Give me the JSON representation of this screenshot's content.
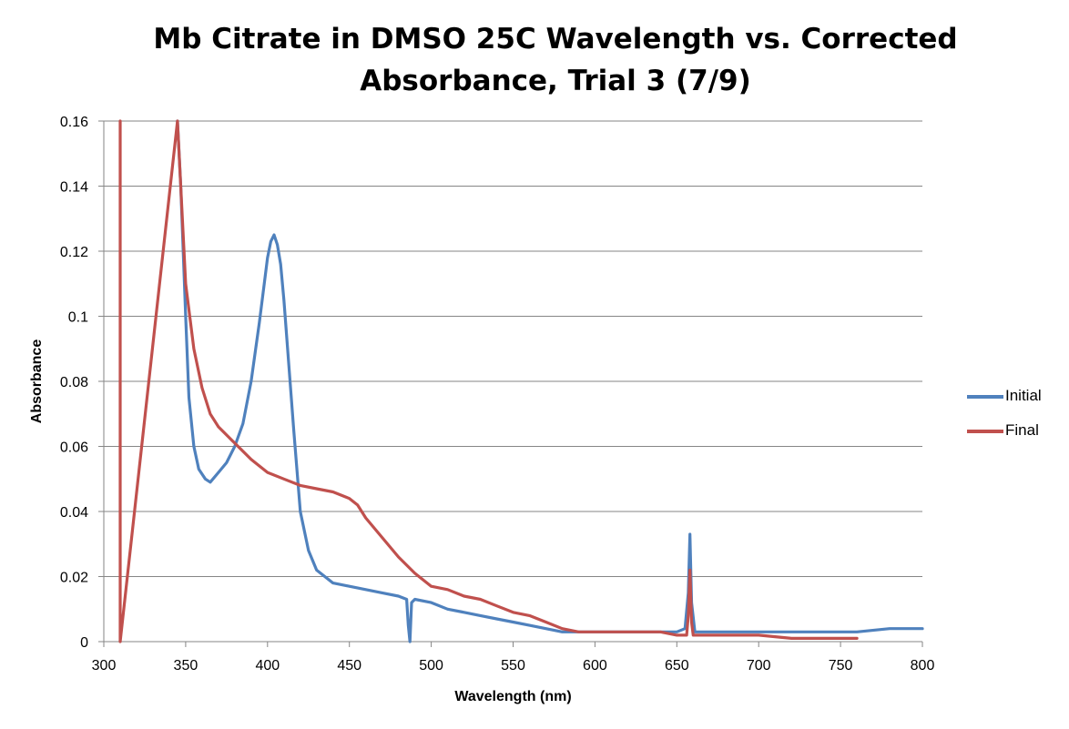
{
  "chart_data": {
    "type": "line",
    "title": "Mb Citrate in DMSO 25C Wavelength vs. Corrected Absorbance, Trial 3 (7/9)",
    "title_lines": [
      "Mb Citrate in DMSO 25C Wavelength vs. Corrected",
      "Absorbance, Trial 3 (7/9)"
    ],
    "xlabel": "Wavelength (nm)",
    "ylabel": "Absorbance",
    "xlim": [
      300,
      800
    ],
    "ylim": [
      0,
      0.16
    ],
    "x_ticks": [
      "300",
      "350",
      "400",
      "450",
      "500",
      "550",
      "600",
      "650",
      "700",
      "750",
      "800"
    ],
    "y_ticks": [
      "0",
      "0.02",
      "0.04",
      "0.06",
      "0.08",
      "0.1",
      "0.12",
      "0.14",
      "0.16"
    ],
    "grid": "horizontal",
    "legend_position": "right",
    "series": [
      {
        "name": "Initial",
        "color": "#4F81BD",
        "x": [
          345,
          347,
          350,
          352,
          355,
          358,
          362,
          365,
          370,
          375,
          380,
          385,
          390,
          395,
          398,
          400,
          402,
          404,
          406,
          408,
          410,
          413,
          416,
          420,
          425,
          430,
          440,
          450,
          460,
          470,
          480,
          485,
          486,
          487,
          488,
          490,
          500,
          510,
          520,
          530,
          540,
          550,
          560,
          570,
          580,
          590,
          600,
          620,
          640,
          650,
          655,
          657,
          658,
          659,
          661,
          665,
          680,
          700,
          720,
          740,
          760,
          780,
          800
        ],
        "y": [
          0.16,
          0.14,
          0.1,
          0.075,
          0.06,
          0.053,
          0.05,
          0.049,
          0.052,
          0.055,
          0.06,
          0.067,
          0.08,
          0.098,
          0.11,
          0.118,
          0.123,
          0.125,
          0.122,
          0.116,
          0.105,
          0.085,
          0.065,
          0.04,
          0.028,
          0.022,
          0.018,
          0.017,
          0.016,
          0.015,
          0.014,
          0.013,
          0.005,
          0.0,
          0.012,
          0.013,
          0.012,
          0.01,
          0.009,
          0.008,
          0.007,
          0.006,
          0.005,
          0.004,
          0.003,
          0.003,
          0.003,
          0.003,
          0.003,
          0.003,
          0.004,
          0.015,
          0.033,
          0.012,
          0.003,
          0.003,
          0.003,
          0.003,
          0.003,
          0.003,
          0.003,
          0.004,
          0.004
        ]
      },
      {
        "name": "Final",
        "color": "#C0504D",
        "x": [
          310,
          310,
          310,
          345,
          348,
          350,
          355,
          360,
          365,
          370,
          380,
          390,
          400,
          410,
          420,
          430,
          440,
          450,
          455,
          460,
          470,
          480,
          490,
          500,
          510,
          520,
          530,
          540,
          550,
          560,
          570,
          580,
          590,
          600,
          620,
          640,
          650,
          656,
          657,
          658,
          659,
          660,
          665,
          680,
          700,
          720,
          740,
          760
        ],
        "y": [
          0.0,
          0.16,
          0.0,
          0.16,
          0.13,
          0.11,
          0.09,
          0.078,
          0.07,
          0.066,
          0.061,
          0.056,
          0.052,
          0.05,
          0.048,
          0.047,
          0.046,
          0.044,
          0.042,
          0.038,
          0.032,
          0.026,
          0.021,
          0.017,
          0.016,
          0.014,
          0.013,
          0.011,
          0.009,
          0.008,
          0.006,
          0.004,
          0.003,
          0.003,
          0.003,
          0.003,
          0.002,
          0.002,
          0.008,
          0.022,
          0.006,
          0.002,
          0.002,
          0.002,
          0.002,
          0.001,
          0.001,
          0.001
        ]
      }
    ]
  }
}
